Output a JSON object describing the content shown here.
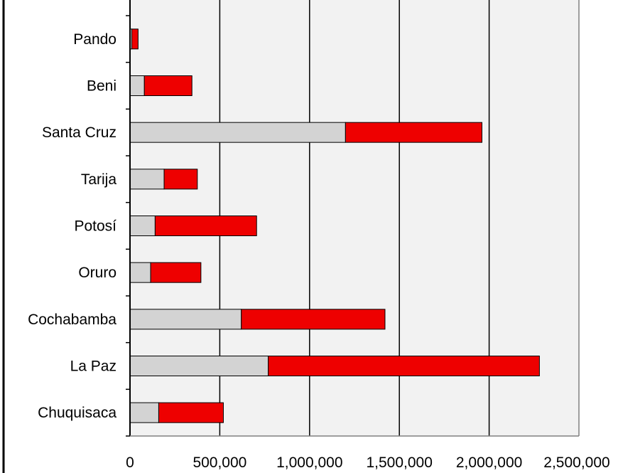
{
  "chart_data": {
    "type": "bar",
    "orientation": "horizontal",
    "stacked": true,
    "categories": [
      "Chuquisaca",
      "La Paz",
      "Cochabamba",
      "Oruro",
      "Potosí",
      "Tarija",
      "Santa Cruz",
      "Beni",
      "Pando"
    ],
    "series": [
      {
        "color": "#d3d3d3",
        "values": [
          160000,
          770000,
          620000,
          115000,
          140000,
          190000,
          1200000,
          80000,
          10000
        ]
      },
      {
        "color": "#ee0000",
        "values": [
          360000,
          1510000,
          800000,
          280000,
          565000,
          185000,
          760000,
          265000,
          35000
        ]
      }
    ],
    "x_ticks": [
      "0",
      "500,000",
      "1,000,000",
      "1,500,000",
      "2,000,000",
      "2,500,000"
    ],
    "xlim": [
      0,
      2500000
    ],
    "grid": true,
    "plot_background": "#f2f2f2"
  }
}
